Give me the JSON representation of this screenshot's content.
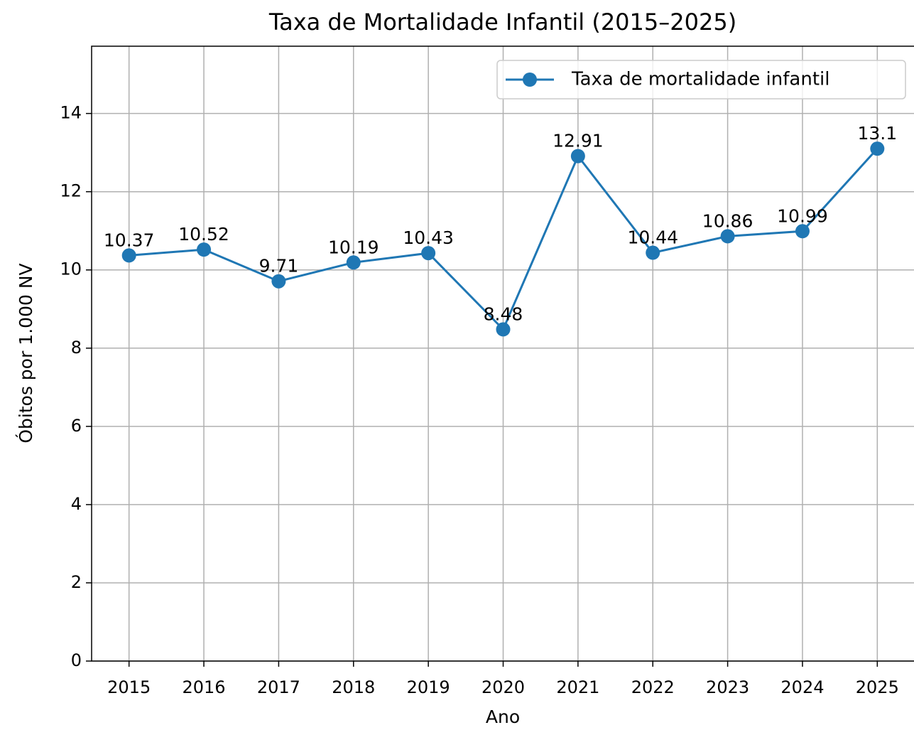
{
  "chart_data": {
    "type": "line",
    "title": "Taxa de Mortalidade Infantil (2015–2025)",
    "xlabel": "Ano",
    "ylabel": "Óbitos por 1.000 NV",
    "x": [
      2015,
      2016,
      2017,
      2018,
      2019,
      2020,
      2021,
      2022,
      2023,
      2024,
      2025
    ],
    "series": [
      {
        "name": "Taxa de mortalidade infantil",
        "color": "#1f77b4",
        "values": [
          10.37,
          10.52,
          9.71,
          10.19,
          10.43,
          8.48,
          12.91,
          10.44,
          10.86,
          10.99,
          13.1
        ]
      }
    ],
    "xlim": [
      2014.5,
      2025.5
    ],
    "ylim": [
      0,
      15.72
    ],
    "xticks": [
      2015,
      2016,
      2017,
      2018,
      2019,
      2020,
      2021,
      2022,
      2023,
      2024,
      2025
    ],
    "yticks": [
      0,
      2,
      4,
      6,
      8,
      10,
      12,
      14
    ],
    "grid": true,
    "legend": "upper right",
    "data_labels": true
  }
}
